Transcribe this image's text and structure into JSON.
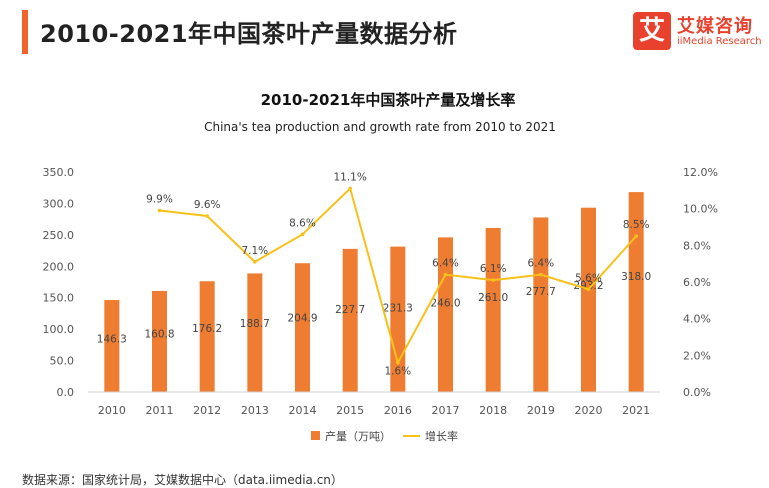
{
  "header": {
    "title": "2010-2021年中国茶叶产量数据分析"
  },
  "logo": {
    "mark": "艾",
    "name_cn": "艾媒咨询",
    "name_en": "iiMedia Research"
  },
  "footer": {
    "source": "数据来源：国家统计局，艾媒数据中心（data.iimedia.cn）"
  },
  "colors": {
    "accent": "#f0642c",
    "bar": "#ef7d31",
    "line": "#f7c11a",
    "logo": "#e8422e"
  },
  "chart_data": {
    "type": "bar",
    "title": "2010-2021年中国茶叶产量及增长率",
    "subtitle": "China's tea production and growth rate from 2010 to 2021",
    "categories": [
      "2010",
      "2011",
      "2012",
      "2013",
      "2014",
      "2015",
      "2016",
      "2017",
      "2018",
      "2019",
      "2020",
      "2021"
    ],
    "series": [
      {
        "name": "产量（万吨）",
        "type": "bar",
        "axis": "left",
        "values": [
          146.3,
          160.8,
          176.2,
          188.7,
          204.9,
          227.7,
          231.3,
          246.0,
          261.0,
          277.7,
          293.2,
          318.0
        ],
        "labels": [
          "146.3",
          "160.8",
          "176.2",
          "188.7",
          "204.9",
          "227.7",
          "231.3",
          "246.0",
          "261.0",
          "277.7",
          "293.2",
          "318.0"
        ]
      },
      {
        "name": "增长率",
        "type": "line",
        "axis": "right",
        "values": [
          null,
          9.9,
          9.6,
          7.1,
          8.6,
          11.1,
          1.6,
          6.4,
          6.1,
          6.4,
          5.6,
          8.5
        ],
        "labels": [
          "",
          "9.9%",
          "9.6%",
          "7.1%",
          "8.6%",
          "11.1%",
          "1.6%",
          "6.4%",
          "6.1%",
          "6.4%",
          "5.6%",
          "8.5%"
        ]
      }
    ],
    "y_left": {
      "range": [
        0,
        350
      ],
      "ticks": [
        "0.0",
        "50.0",
        "100.0",
        "150.0",
        "200.0",
        "250.0",
        "300.0",
        "350.0"
      ]
    },
    "y_right": {
      "range": [
        0,
        12
      ],
      "ticks": [
        "0.0%",
        "2.0%",
        "4.0%",
        "6.0%",
        "8.0%",
        "10.0%",
        "12.0%"
      ]
    },
    "grid": false,
    "legend_position": "bottom-center"
  }
}
